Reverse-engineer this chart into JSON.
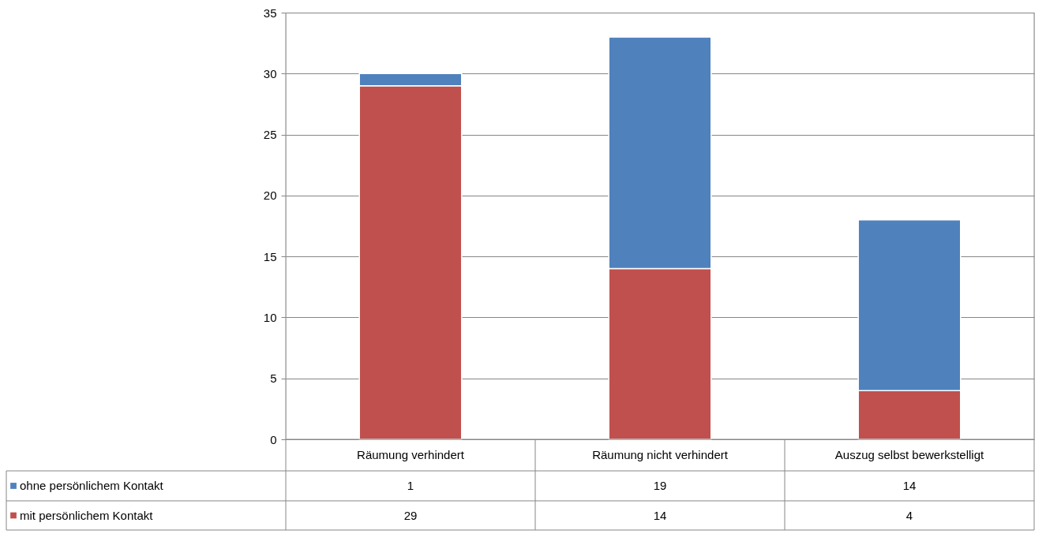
{
  "chart_data": {
    "type": "bar",
    "stacked": true,
    "categories": [
      "Räumung verhindert",
      "Räumung nicht verhindert",
      "Auszug selbst bewerkstelligt"
    ],
    "series": [
      {
        "name": "mit persönlichem Kontakt",
        "color": "#c0504d",
        "values": [
          29,
          14,
          4
        ]
      },
      {
        "name": "ohne persönlichem Kontakt",
        "color": "#4f81bd",
        "values": [
          1,
          19,
          14
        ]
      }
    ],
    "ylim": [
      0,
      35
    ],
    "yticks": [
      0,
      5,
      10,
      15,
      20,
      25,
      30,
      35
    ],
    "grid": "y",
    "legend": "bottom",
    "data_labels": true
  }
}
